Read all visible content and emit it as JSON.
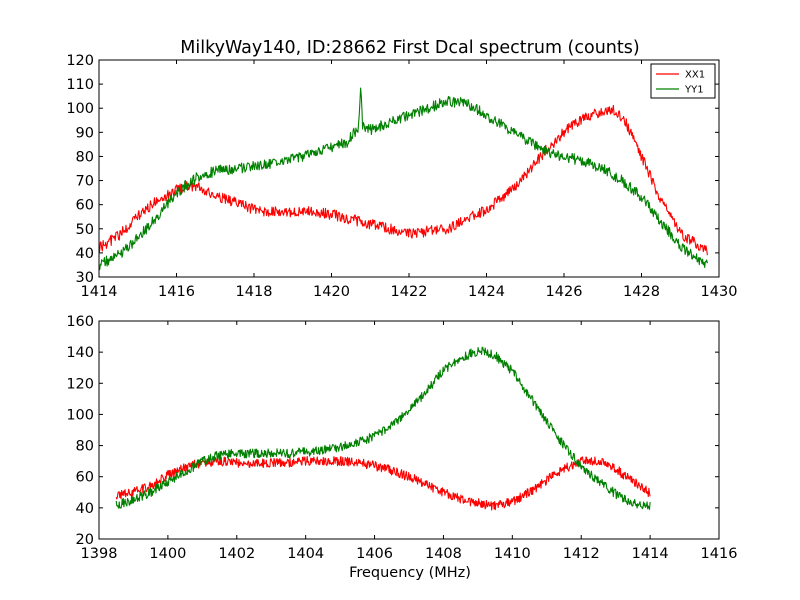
{
  "chart_data": [
    {
      "type": "line",
      "title": "MilkyWay140, ID:28662 First Dcal spectrum (counts)",
      "xlabel": "",
      "ylabel": "",
      "xlim": [
        1414,
        1430
      ],
      "ylim": [
        30,
        120
      ],
      "xticks": [
        "1414",
        "1416",
        "1418",
        "1420",
        "1422",
        "1424",
        "1426",
        "1428",
        "1430"
      ],
      "yticks": [
        "30",
        "40",
        "50",
        "60",
        "70",
        "80",
        "90",
        "100",
        "110",
        "120"
      ],
      "legend": {
        "position": "top-right",
        "entries": [
          "XX1",
          "YY1"
        ]
      },
      "grid": false,
      "series": [
        {
          "name": "XX1",
          "color": "#ff0000",
          "x": [
            1414.0,
            1414.5,
            1415.0,
            1415.5,
            1416.0,
            1416.3,
            1416.6,
            1417.0,
            1417.5,
            1418.0,
            1418.5,
            1419.0,
            1419.5,
            1420.0,
            1420.5,
            1421.0,
            1421.5,
            1422.0,
            1422.5,
            1423.0,
            1423.5,
            1424.0,
            1424.5,
            1425.0,
            1425.5,
            1426.0,
            1426.5,
            1427.0,
            1427.3,
            1427.6,
            1428.0,
            1428.5,
            1429.0,
            1429.5,
            1429.7
          ],
          "y": [
            42,
            47,
            55,
            62,
            66,
            68,
            67,
            64,
            61,
            58,
            57,
            57,
            57,
            56,
            54,
            52,
            50,
            48,
            49,
            50,
            54,
            58,
            64,
            72,
            82,
            90,
            96,
            99,
            99,
            94,
            80,
            62,
            48,
            43,
            41
          ]
        },
        {
          "name": "YY1",
          "color": "#008000",
          "x": [
            1414.0,
            1414.5,
            1415.0,
            1415.5,
            1416.0,
            1416.5,
            1417.0,
            1417.5,
            1418.0,
            1418.5,
            1419.0,
            1419.5,
            1420.0,
            1420.4,
            1420.7,
            1420.75,
            1420.8,
            1421.0,
            1421.5,
            1422.0,
            1422.5,
            1423.0,
            1423.5,
            1424.0,
            1424.5,
            1425.0,
            1425.5,
            1426.0,
            1426.5,
            1427.0,
            1427.5,
            1428.0,
            1428.5,
            1429.0,
            1429.5,
            1429.7
          ],
          "y": [
            35,
            39,
            46,
            55,
            65,
            71,
            74,
            75,
            76,
            77,
            79,
            81,
            84,
            86,
            92,
            110,
            93,
            91,
            94,
            97,
            100,
            103,
            102,
            97,
            92,
            87,
            82,
            80,
            78,
            75,
            70,
            63,
            53,
            43,
            37,
            35
          ]
        }
      ]
    },
    {
      "type": "line",
      "title": "",
      "xlabel": "Frequency (MHz)",
      "ylabel": "",
      "xlim": [
        1398,
        1416
      ],
      "ylim": [
        20,
        160
      ],
      "xticks": [
        "1398",
        "1400",
        "1402",
        "1404",
        "1406",
        "1408",
        "1410",
        "1412",
        "1414",
        "1416"
      ],
      "yticks": [
        "20",
        "40",
        "60",
        "80",
        "100",
        "120",
        "140",
        "160"
      ],
      "legend": null,
      "grid": false,
      "series": [
        {
          "name": "XX1",
          "color": "#ff0000",
          "x": [
            1398.5,
            1399.0,
            1399.5,
            1400.0,
            1400.5,
            1401.0,
            1401.5,
            1402.0,
            1402.5,
            1403.0,
            1403.5,
            1404.0,
            1404.5,
            1405.0,
            1405.5,
            1406.0,
            1406.5,
            1407.0,
            1407.5,
            1408.0,
            1408.5,
            1409.0,
            1409.5,
            1410.0,
            1410.5,
            1411.0,
            1411.5,
            1412.0,
            1412.5,
            1413.0,
            1413.5,
            1414.0
          ],
          "y": [
            48,
            50,
            54,
            61,
            66,
            69,
            70,
            69,
            68,
            69,
            69,
            70,
            70,
            70,
            69,
            67,
            64,
            60,
            55,
            50,
            46,
            43,
            41,
            44,
            50,
            58,
            65,
            70,
            70,
            65,
            57,
            49
          ]
        },
        {
          "name": "YY1",
          "color": "#008000",
          "x": [
            1398.5,
            1399.0,
            1399.5,
            1400.0,
            1400.5,
            1401.0,
            1401.5,
            1402.0,
            1402.5,
            1403.0,
            1403.5,
            1404.0,
            1404.5,
            1405.0,
            1405.5,
            1406.0,
            1406.5,
            1407.0,
            1407.5,
            1408.0,
            1408.5,
            1409.0,
            1409.5,
            1410.0,
            1410.5,
            1411.0,
            1411.5,
            1412.0,
            1412.5,
            1413.0,
            1413.5,
            1414.0
          ],
          "y": [
            42,
            45,
            50,
            57,
            63,
            70,
            74,
            75,
            75,
            75,
            75,
            76,
            77,
            79,
            82,
            86,
            93,
            102,
            115,
            128,
            136,
            141,
            138,
            128,
            112,
            95,
            80,
            67,
            57,
            49,
            43,
            41
          ]
        }
      ]
    }
  ]
}
